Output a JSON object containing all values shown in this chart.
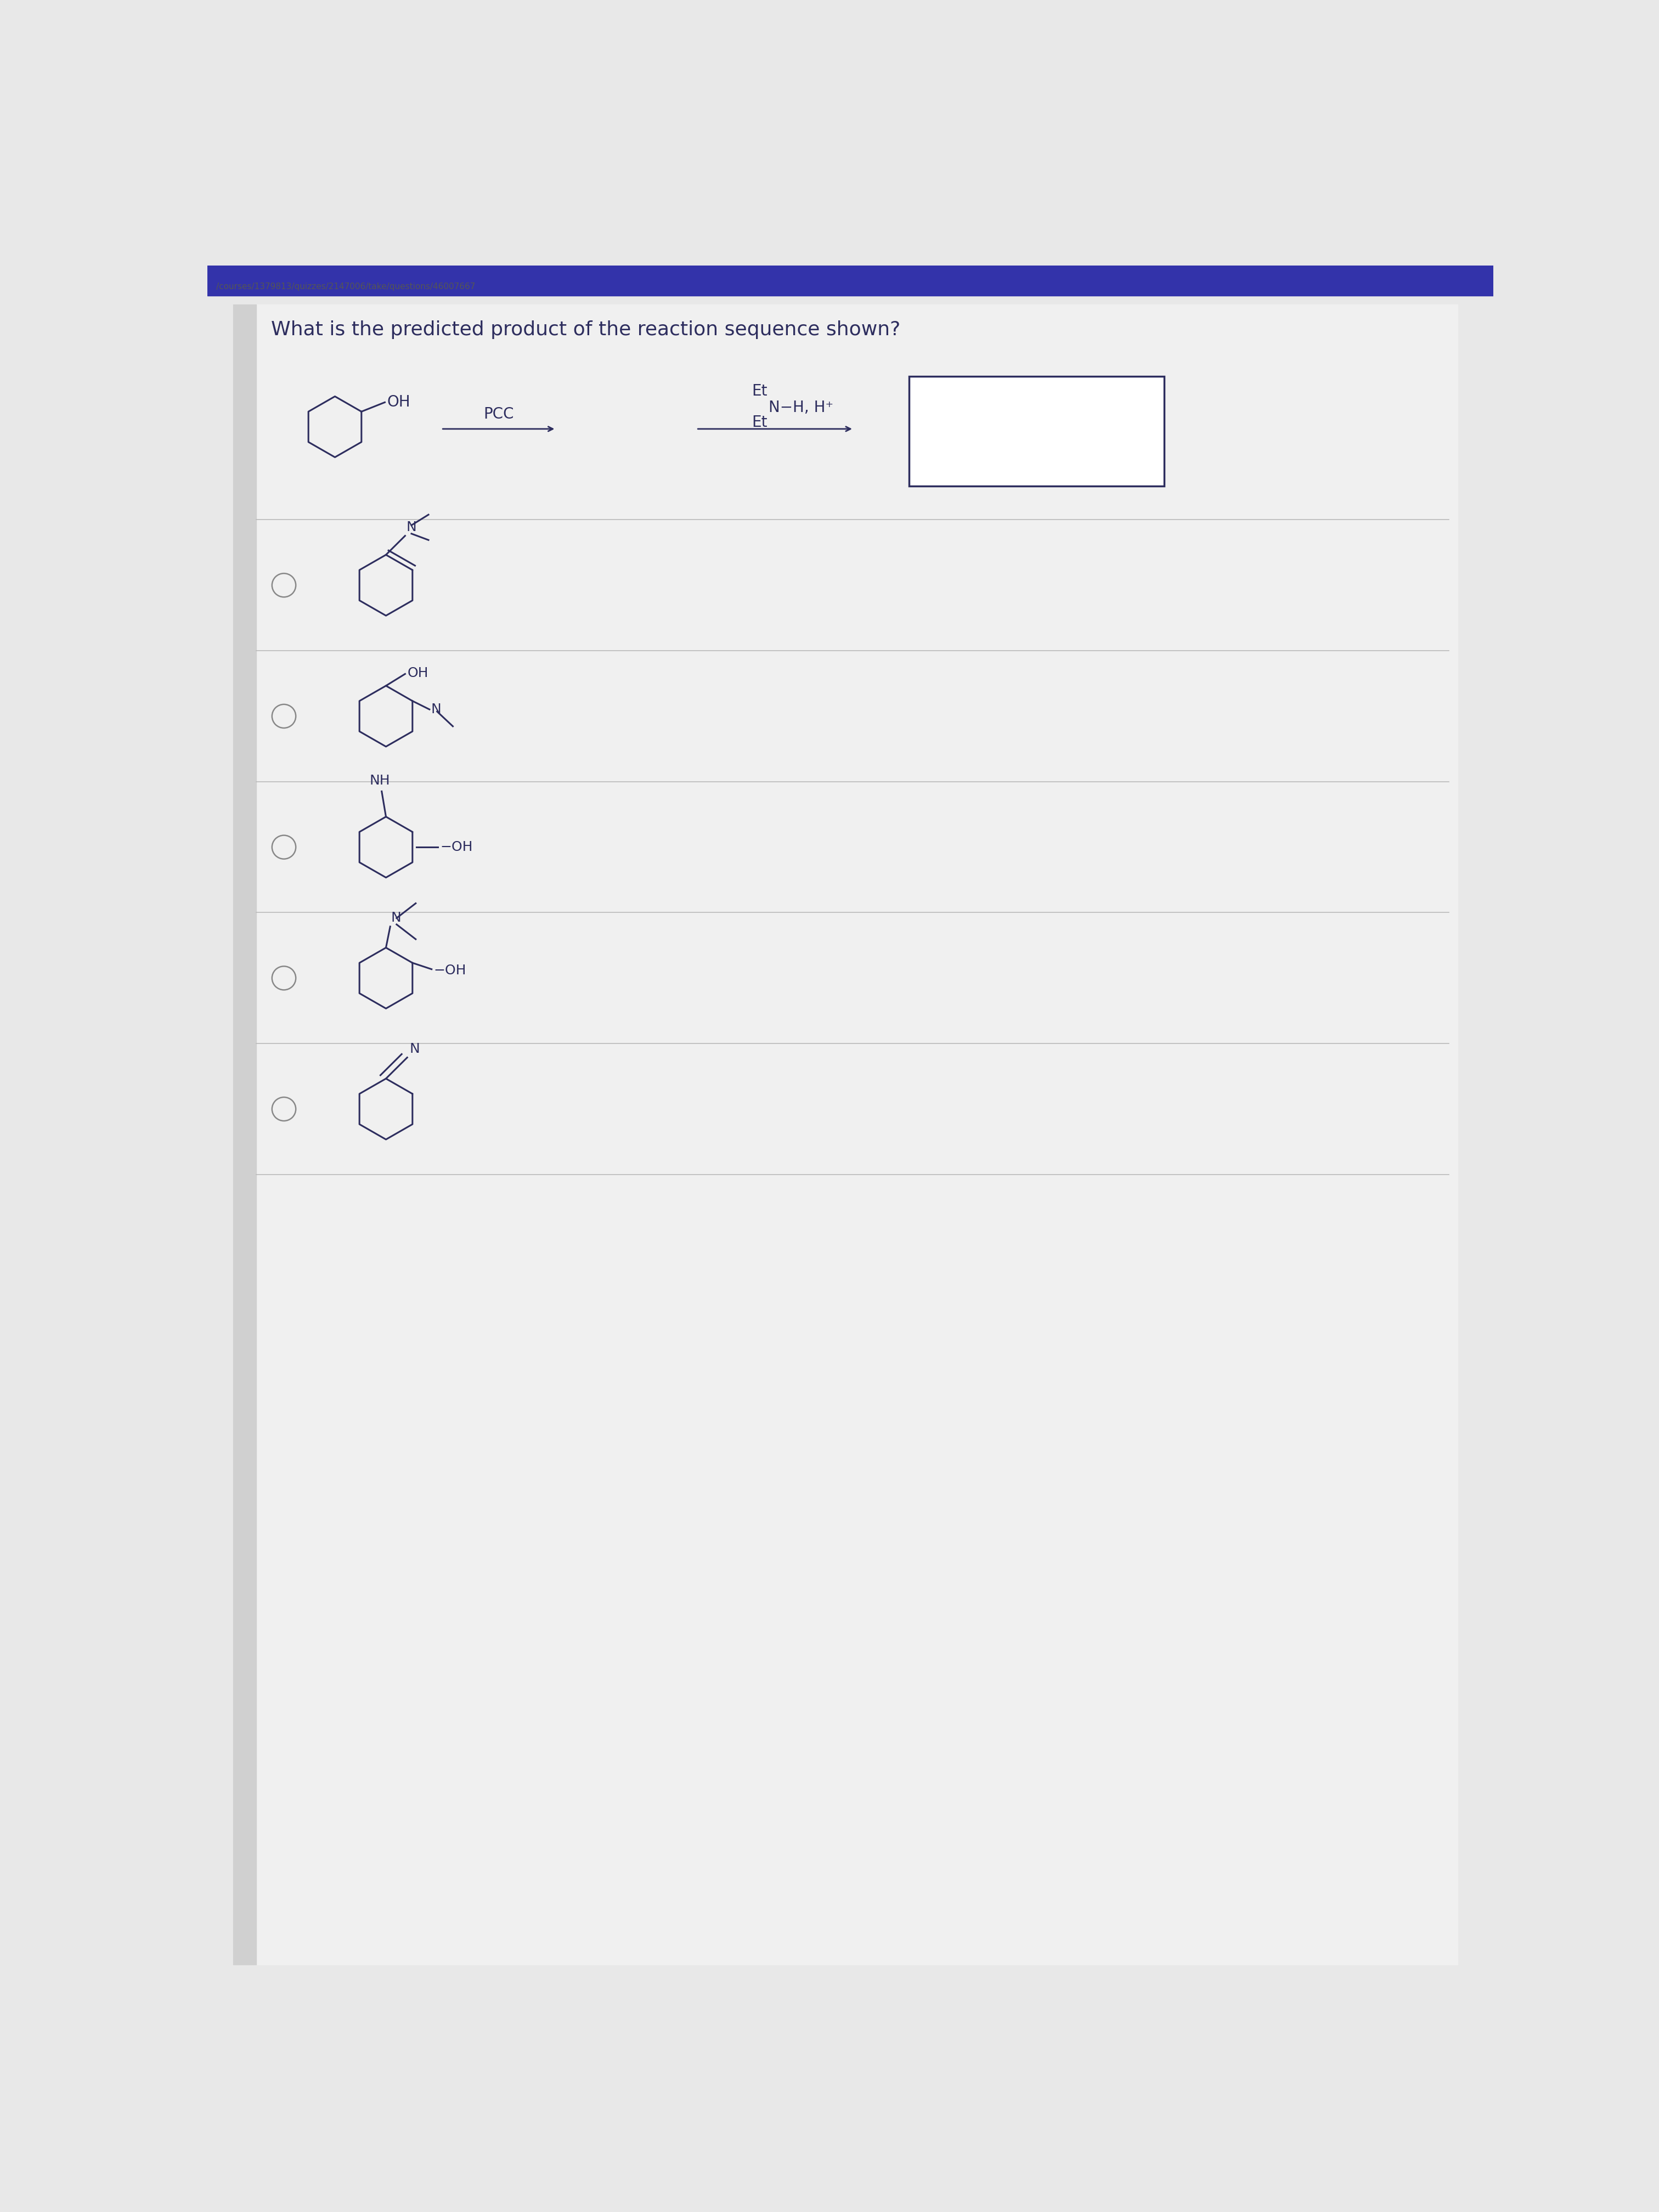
{
  "title": "What is the predicted product of the reaction sequence shown?",
  "bg_color": "#e8e8e8",
  "content_bg": "#f0f0f0",
  "text_color": "#2d2d5e",
  "line_color": "#2d2d5e",
  "question_fontsize": 26,
  "chem_fontsize": 20,
  "small_fontsize": 18,
  "header_color": "#3333aa",
  "sep_color": "#bbbbbb",
  "radio_color": "#888888"
}
